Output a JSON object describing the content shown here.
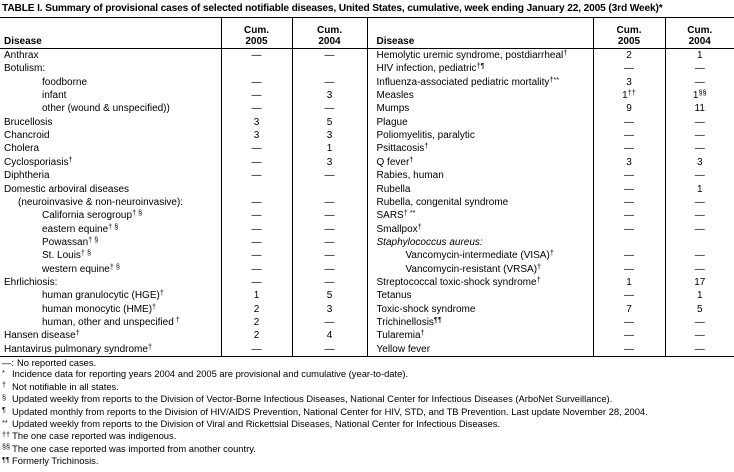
{
  "title": "TABLE I. Summary of provisional cases of selected notifiable diseases, United States, cumulative, week ending January 22, 2005 (3rd Week)*",
  "colors": {
    "text": "#000000",
    "background": "#ffffff",
    "rules": "#000000"
  },
  "header": {
    "disease": "Disease",
    "cum": "Cum.",
    "year2005": "2005",
    "year2004": "2004"
  },
  "no_case_symbol": "—",
  "left_rows": [
    {
      "label": "Anthrax",
      "sup": "",
      "indent": 0,
      "italic": false,
      "c05": "—",
      "c05sup": "",
      "c04": "—",
      "c04sup": ""
    },
    {
      "label": "Botulism:",
      "sup": "",
      "indent": 0,
      "italic": false,
      "c05": "",
      "c05sup": "",
      "c04": "",
      "c04sup": ""
    },
    {
      "label": "foodborne",
      "sup": "",
      "indent": 2,
      "italic": false,
      "c05": "—",
      "c05sup": "",
      "c04": "—",
      "c04sup": ""
    },
    {
      "label": "infant",
      "sup": "",
      "indent": 2,
      "italic": false,
      "c05": "—",
      "c05sup": "",
      "c04": "3",
      "c04sup": ""
    },
    {
      "label": "other (wound & unspecified))",
      "sup": "",
      "indent": 2,
      "italic": false,
      "c05": "—",
      "c05sup": "",
      "c04": "—",
      "c04sup": ""
    },
    {
      "label": "Brucellosis",
      "sup": "",
      "indent": 0,
      "italic": false,
      "c05": "3",
      "c05sup": "",
      "c04": "5",
      "c04sup": ""
    },
    {
      "label": "Chancroid",
      "sup": "",
      "indent": 0,
      "italic": false,
      "c05": "3",
      "c05sup": "",
      "c04": "3",
      "c04sup": ""
    },
    {
      "label": "Cholera",
      "sup": "",
      "indent": 0,
      "italic": false,
      "c05": "—",
      "c05sup": "",
      "c04": "1",
      "c04sup": ""
    },
    {
      "label": "Cyclosporiasis",
      "sup": "†",
      "indent": 0,
      "italic": false,
      "c05": "—",
      "c05sup": "",
      "c04": "3",
      "c04sup": ""
    },
    {
      "label": "Diphtheria",
      "sup": "",
      "indent": 0,
      "italic": false,
      "c05": "—",
      "c05sup": "",
      "c04": "—",
      "c04sup": ""
    },
    {
      "label": "Domestic arboviral diseases",
      "sup": "",
      "indent": 0,
      "italic": false,
      "c05": "",
      "c05sup": "",
      "c04": "",
      "c04sup": ""
    },
    {
      "label": "(neuroinvasive & non-neuroinvasive):",
      "sup": "",
      "indent": 1,
      "italic": false,
      "c05": "—",
      "c05sup": "",
      "c04": "—",
      "c04sup": ""
    },
    {
      "label": "California serogroup",
      "sup": "† §",
      "indent": 2,
      "italic": false,
      "c05": "—",
      "c05sup": "",
      "c04": "—",
      "c04sup": ""
    },
    {
      "label": "eastern equine",
      "sup": "† §",
      "indent": 2,
      "italic": false,
      "c05": "—",
      "c05sup": "",
      "c04": "—",
      "c04sup": ""
    },
    {
      "label": "Powassan",
      "sup": "† §",
      "indent": 2,
      "italic": false,
      "c05": "—",
      "c05sup": "",
      "c04": "—",
      "c04sup": ""
    },
    {
      "label": "St. Louis",
      "sup": "† §",
      "indent": 2,
      "italic": false,
      "c05": "—",
      "c05sup": "",
      "c04": "—",
      "c04sup": ""
    },
    {
      "label": "western equine",
      "sup": "† §",
      "indent": 2,
      "italic": false,
      "c05": "—",
      "c05sup": "",
      "c04": "—",
      "c04sup": ""
    },
    {
      "label": "Ehrlichiosis:",
      "sup": "",
      "indent": 0,
      "italic": false,
      "c05": "—",
      "c05sup": "",
      "c04": "—",
      "c04sup": ""
    },
    {
      "label": "human granulocytic (HGE)",
      "sup": "†",
      "indent": 2,
      "italic": false,
      "c05": "1",
      "c05sup": "",
      "c04": "5",
      "c04sup": ""
    },
    {
      "label": "human monocytic (HME)",
      "sup": "†",
      "indent": 2,
      "italic": false,
      "c05": "2",
      "c05sup": "",
      "c04": "3",
      "c04sup": ""
    },
    {
      "label": "human, other and unspecified",
      "sup": " †",
      "indent": 2,
      "italic": false,
      "c05": "2",
      "c05sup": "",
      "c04": "—",
      "c04sup": ""
    },
    {
      "label": "Hansen disease",
      "sup": "†",
      "indent": 0,
      "italic": false,
      "c05": "2",
      "c05sup": "",
      "c04": "4",
      "c04sup": ""
    },
    {
      "label": "Hantavirus pulmonary syndrome",
      "sup": "†",
      "indent": 0,
      "italic": false,
      "c05": "—",
      "c05sup": "",
      "c04": "—",
      "c04sup": ""
    }
  ],
  "right_rows": [
    {
      "label": "Hemolytic uremic syndrome, postdiarrheal",
      "sup": "†",
      "indent": 0,
      "italic": false,
      "c05": "2",
      "c05sup": "",
      "c04": "1",
      "c04sup": ""
    },
    {
      "label": "HIV infection, pediatric",
      "sup": "†¶",
      "indent": 0,
      "italic": false,
      "c05": "—",
      "c05sup": "",
      "c04": "—",
      "c04sup": ""
    },
    {
      "label": "Influenza-associated pediatric mortality",
      "sup": "†**",
      "indent": 0,
      "italic": false,
      "c05": "3",
      "c05sup": "",
      "c04": "—",
      "c04sup": ""
    },
    {
      "label": "Measles",
      "sup": "",
      "indent": 0,
      "italic": false,
      "c05": "1",
      "c05sup": "††",
      "c04": "1",
      "c04sup": "§§"
    },
    {
      "label": "Mumps",
      "sup": "",
      "indent": 0,
      "italic": false,
      "c05": "9",
      "c05sup": "",
      "c04": "11",
      "c04sup": ""
    },
    {
      "label": "Plague",
      "sup": "",
      "indent": 0,
      "italic": false,
      "c05": "—",
      "c05sup": "",
      "c04": "—",
      "c04sup": ""
    },
    {
      "label": "Poliomyelitis, paralytic",
      "sup": "",
      "indent": 0,
      "italic": false,
      "c05": "—",
      "c05sup": "",
      "c04": "—",
      "c04sup": ""
    },
    {
      "label": "Psittacosis",
      "sup": "†",
      "indent": 0,
      "italic": false,
      "c05": "—",
      "c05sup": "",
      "c04": "—",
      "c04sup": ""
    },
    {
      "label": "Q fever",
      "sup": "†",
      "indent": 0,
      "italic": false,
      "c05": "3",
      "c05sup": "",
      "c04": "3",
      "c04sup": ""
    },
    {
      "label": "Rabies, human",
      "sup": "",
      "indent": 0,
      "italic": false,
      "c05": "—",
      "c05sup": "",
      "c04": "—",
      "c04sup": ""
    },
    {
      "label": "Rubella",
      "sup": "",
      "indent": 0,
      "italic": false,
      "c05": "—",
      "c05sup": "",
      "c04": "1",
      "c04sup": ""
    },
    {
      "label": "Rubella, congenital syndrome",
      "sup": "",
      "indent": 0,
      "italic": false,
      "c05": "—",
      "c05sup": "",
      "c04": "—",
      "c04sup": ""
    },
    {
      "label": "SARS",
      "sup": "† **",
      "indent": 0,
      "italic": false,
      "c05": "—",
      "c05sup": "",
      "c04": "—",
      "c04sup": ""
    },
    {
      "label": "Smallpox",
      "sup": "†",
      "indent": 0,
      "italic": false,
      "c05": "—",
      "c05sup": "",
      "c04": "—",
      "c04sup": ""
    },
    {
      "label": "Staphylococcus aureus:",
      "sup": "",
      "indent": 0,
      "italic": true,
      "c05": "",
      "c05sup": "",
      "c04": "",
      "c04sup": ""
    },
    {
      "label": "Vancomycin-intermediate (VISA)",
      "sup": "†",
      "indent": 2,
      "italic": false,
      "c05": "—",
      "c05sup": "",
      "c04": "—",
      "c04sup": ""
    },
    {
      "label": "Vancomycin-resistant (VRSA)",
      "sup": "†",
      "indent": 2,
      "italic": false,
      "c05": "—",
      "c05sup": "",
      "c04": "—",
      "c04sup": ""
    },
    {
      "label": "Streptococcal toxic-shock syndrome",
      "sup": "†",
      "indent": 0,
      "italic": false,
      "c05": "1",
      "c05sup": "",
      "c04": "17",
      "c04sup": ""
    },
    {
      "label": "Tetanus",
      "sup": "",
      "indent": 0,
      "italic": false,
      "c05": "—",
      "c05sup": "",
      "c04": "1",
      "c04sup": ""
    },
    {
      "label": "Toxic-shock syndrome",
      "sup": "",
      "indent": 0,
      "italic": false,
      "c05": "7",
      "c05sup": "",
      "c04": "5",
      "c04sup": ""
    },
    {
      "label": "Trichinellosis",
      "sup": "¶¶",
      "indent": 0,
      "italic": false,
      "c05": "—",
      "c05sup": "",
      "c04": "—",
      "c04sup": ""
    },
    {
      "label": "Tularemia",
      "sup": "†",
      "indent": 0,
      "italic": false,
      "c05": "—",
      "c05sup": "",
      "c04": "—",
      "c04sup": ""
    },
    {
      "label": "Yellow fever",
      "sup": "",
      "indent": 0,
      "italic": false,
      "c05": "—",
      "c05sup": "",
      "c04": "—",
      "c04sup": ""
    }
  ],
  "footnotes": [
    {
      "marker": "—:",
      "raised": false,
      "text": "No reported cases."
    },
    {
      "marker": "*",
      "raised": true,
      "text": "Incidence data for reporting years 2004 and 2005 are provisional and cumulative (year-to-date)."
    },
    {
      "marker": "†",
      "raised": true,
      "text": "Not notifiable in all states."
    },
    {
      "marker": "§",
      "raised": true,
      "text": "Updated weekly from reports to the Division of Vector-Borne Infectious Diseases, National Center for Infectious Diseases (ArboNet Surveillance)."
    },
    {
      "marker": "¶",
      "raised": true,
      "text": "Updated monthly from reports to the Division of HIV/AIDS Prevention, National Center for HIV, STD, and TB Prevention. Last update November 28, 2004."
    },
    {
      "marker": "**",
      "raised": true,
      "text": "Updated weekly from reports to the Division of Viral and Rickettsial Diseases, National Center for Infectious Diseases."
    },
    {
      "marker": "††",
      "raised": true,
      "text": "The one case reported was indigenous."
    },
    {
      "marker": "§§",
      "raised": true,
      "text": "The one case reported was imported from another country."
    },
    {
      "marker": "¶¶",
      "raised": true,
      "text": "Formerly Trichinosis."
    }
  ]
}
